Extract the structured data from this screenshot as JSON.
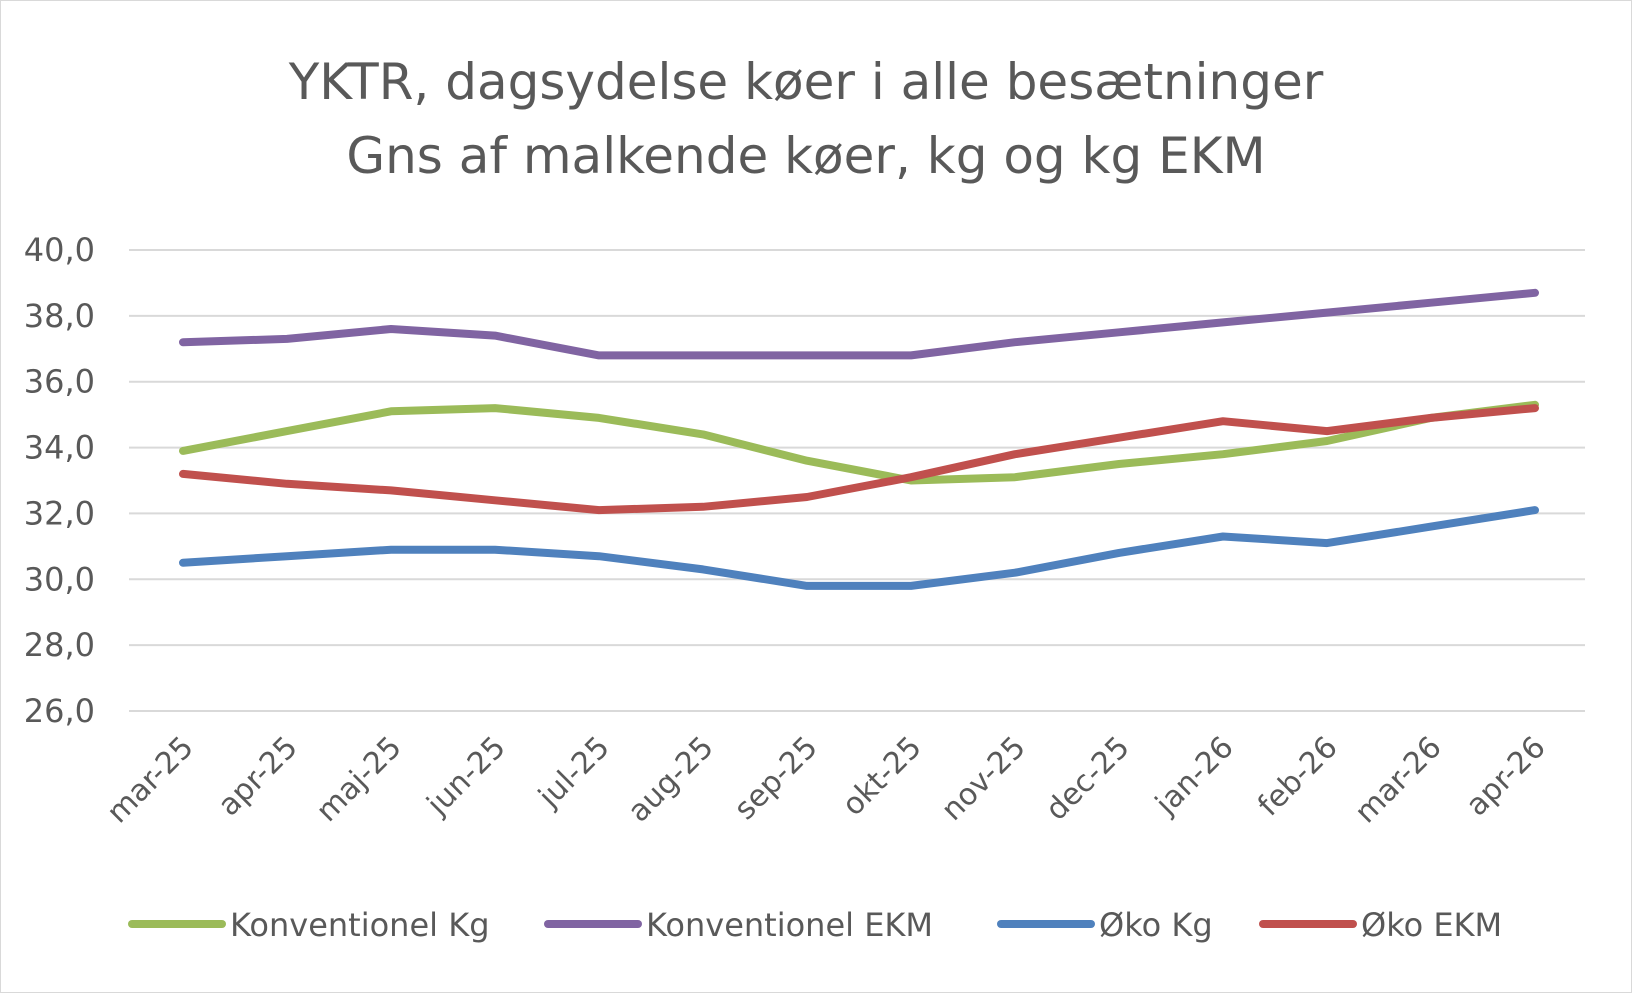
{
  "chart_data": {
    "type": "line",
    "title": "YKTR, dagsydelse køer i alle besætninger",
    "subtitle": "Gns af malkende køer, kg og kg EKM",
    "xlabel": "",
    "ylabel": "",
    "categories": [
      "mar-25",
      "apr-25",
      "maj-25",
      "jun-25",
      "jul-25",
      "aug-25",
      "sep-25",
      "okt-25",
      "nov-25",
      "dec-25",
      "jan-26",
      "feb-26",
      "mar-26",
      "apr-26"
    ],
    "ylim": [
      26,
      40
    ],
    "yticks": [
      "26,0",
      "28,0",
      "30,0",
      "32,0",
      "34,0",
      "36,0",
      "38,0",
      "40,0"
    ],
    "grid": true,
    "legend_position": "bottom",
    "series": [
      {
        "name": "Konventionel Kg",
        "color": "#9bbb59",
        "values": [
          33.9,
          34.5,
          35.1,
          35.2,
          34.9,
          34.4,
          33.6,
          33.0,
          33.1,
          33.5,
          33.8,
          34.2,
          34.9,
          35.3
        ]
      },
      {
        "name": "Konventionel EKM",
        "color": "#8064a2",
        "values": [
          37.2,
          37.3,
          37.6,
          37.4,
          36.8,
          36.8,
          36.8,
          36.8,
          37.2,
          37.5,
          37.8,
          38.1,
          38.4,
          38.7
        ]
      },
      {
        "name": "Øko Kg",
        "color": "#4f81bd",
        "values": [
          30.5,
          30.7,
          30.9,
          30.9,
          30.7,
          30.3,
          29.8,
          29.8,
          30.2,
          30.8,
          31.3,
          31.1,
          31.6,
          32.1
        ]
      },
      {
        "name": "Øko EKM",
        "color": "#c0504d",
        "values": [
          33.2,
          32.9,
          32.7,
          32.4,
          32.1,
          32.2,
          32.5,
          33.1,
          33.8,
          34.3,
          34.8,
          34.5,
          34.9,
          35.2
        ]
      }
    ]
  }
}
